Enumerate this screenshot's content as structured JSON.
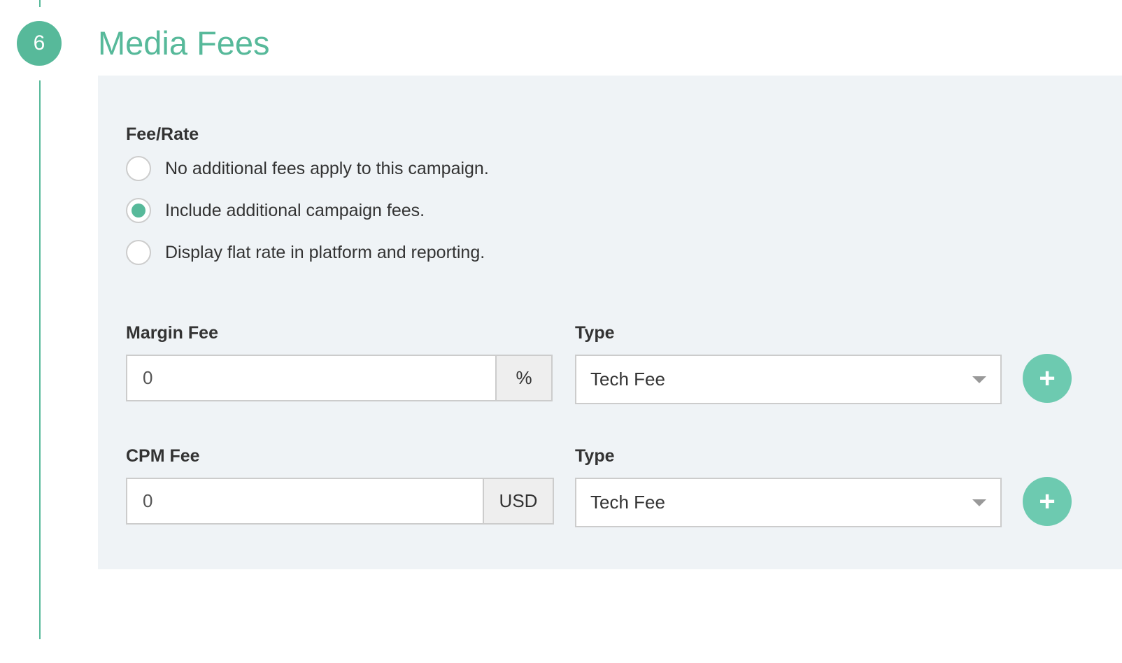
{
  "section": {
    "step_number": "6",
    "title": "Media Fees"
  },
  "fee_rate": {
    "label": "Fee/Rate",
    "options": [
      {
        "label": "No additional fees apply to this campaign.",
        "selected": false
      },
      {
        "label": "Include additional campaign fees.",
        "selected": true
      },
      {
        "label": "Display flat rate in platform and reporting.",
        "selected": false
      }
    ]
  },
  "margin_fee": {
    "label": "Margin Fee",
    "value": "0",
    "unit": "%",
    "type_label": "Type",
    "type_value": "Tech Fee",
    "add_icon": "plus-icon"
  },
  "cpm_fee": {
    "label": "CPM Fee",
    "value": "0",
    "unit": "USD",
    "type_label": "Type",
    "type_value": "Tech Fee",
    "add_icon": "plus-icon"
  },
  "colors": {
    "accent": "#57b99a",
    "add_button": "#6dcab0",
    "panel": "#eff3f6"
  }
}
